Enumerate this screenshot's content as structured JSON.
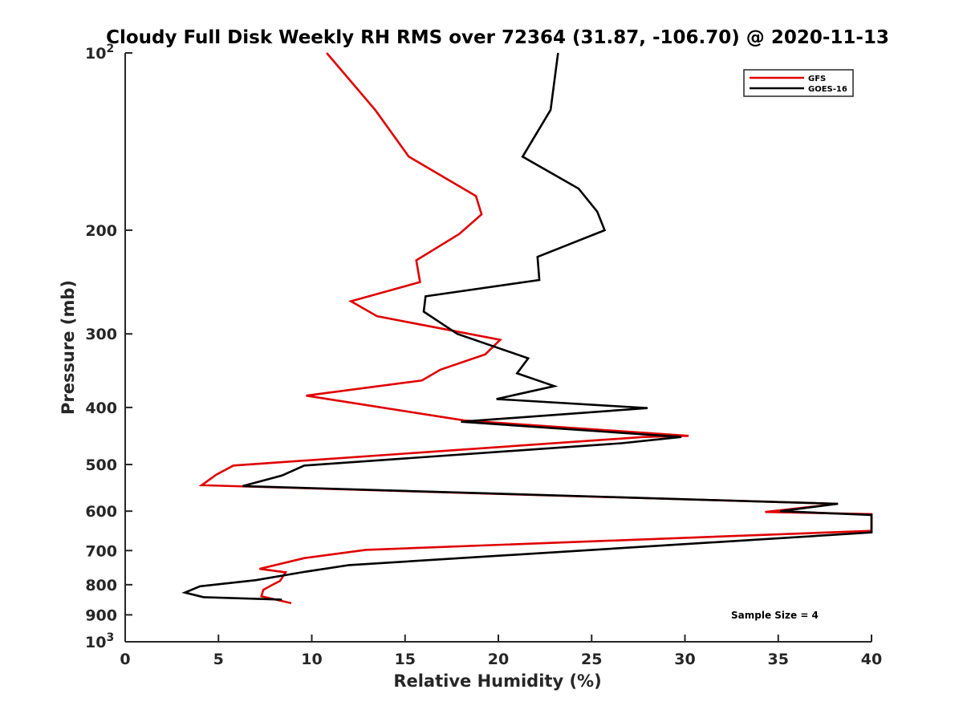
{
  "chart_data": {
    "type": "line",
    "title": "Cloudy Full Disk Weekly RH RMS over 72364 (31.87, -106.70) @ 2020-11-13",
    "xlabel": "Relative Humidity (%)",
    "ylabel": "Pressure (mb)",
    "xlim": [
      0,
      40
    ],
    "ylim": [
      100,
      1000
    ],
    "y_scale": "log",
    "y_reversed": true,
    "grid": false,
    "legend_position": "top-right",
    "x_ticks": [
      0,
      5,
      10,
      15,
      20,
      25,
      30,
      35,
      40
    ],
    "x_tick_labels": [
      "0",
      "5",
      "10",
      "15",
      "20",
      "25",
      "30",
      "35",
      "40"
    ],
    "y_ticks": [
      100,
      200,
      300,
      400,
      500,
      600,
      700,
      800,
      900,
      1000
    ],
    "y_tick_labels": [
      {
        "base": "10",
        "exp": "2"
      },
      {
        "base": "200",
        "exp": ""
      },
      {
        "base": "300",
        "exp": ""
      },
      {
        "base": "400",
        "exp": ""
      },
      {
        "base": "500",
        "exp": ""
      },
      {
        "base": "600",
        "exp": ""
      },
      {
        "base": "700",
        "exp": ""
      },
      {
        "base": "800",
        "exp": ""
      },
      {
        "base": "900",
        "exp": ""
      },
      {
        "base": "10",
        "exp": "3"
      }
    ],
    "annotation": "Sample Size = 4",
    "series": [
      {
        "name": "GFS",
        "color": "#e00000",
        "points": [
          [
            10.8,
            100
          ],
          [
            13.4,
            125
          ],
          [
            15.2,
            150
          ],
          [
            18.8,
            175
          ],
          [
            19.1,
            188
          ],
          [
            17.9,
            203
          ],
          [
            15.6,
            225
          ],
          [
            15.8,
            245
          ],
          [
            12.1,
            264
          ],
          [
            13.5,
            280
          ],
          [
            20.1,
            307
          ],
          [
            19.3,
            325
          ],
          [
            16.9,
            345
          ],
          [
            15.9,
            360
          ],
          [
            9.7,
            382
          ],
          [
            18.2,
            421
          ],
          [
            30.2,
            447
          ],
          [
            27.8,
            449
          ],
          [
            5.8,
            502
          ],
          [
            4.9,
            520
          ],
          [
            4.1,
            542
          ],
          [
            38.2,
            583
          ],
          [
            34.3,
            602
          ],
          [
            40.0,
            607
          ],
          [
            40.0,
            648
          ],
          [
            12.9,
            698
          ],
          [
            9.6,
            721
          ],
          [
            7.2,
            752
          ],
          [
            8.6,
            762
          ],
          [
            8.3,
            788
          ],
          [
            7.9,
            800
          ],
          [
            7.4,
            816
          ],
          [
            7.3,
            837
          ],
          [
            8.9,
            860
          ]
        ]
      },
      {
        "name": "GOES-16",
        "color": "#000000",
        "points": [
          [
            23.2,
            100
          ],
          [
            22.8,
            125
          ],
          [
            21.3,
            150
          ],
          [
            24.3,
            170
          ],
          [
            25.3,
            186
          ],
          [
            25.7,
            200
          ],
          [
            22.1,
            222
          ],
          [
            22.2,
            243
          ],
          [
            16.1,
            259
          ],
          [
            16.0,
            275
          ],
          [
            17.8,
            300
          ],
          [
            21.6,
            330
          ],
          [
            21.0,
            350
          ],
          [
            23.0,
            368
          ],
          [
            19.9,
            387
          ],
          [
            28.0,
            401
          ],
          [
            18.0,
            423
          ],
          [
            29.8,
            449
          ],
          [
            26.6,
            460
          ],
          [
            9.6,
            502
          ],
          [
            8.4,
            522
          ],
          [
            6.3,
            544
          ],
          [
            38.2,
            583
          ],
          [
            35.1,
            600
          ],
          [
            40.0,
            609
          ],
          [
            40.0,
            652
          ],
          [
            12.0,
            741
          ],
          [
            9.6,
            761
          ],
          [
            7.0,
            786
          ],
          [
            4.0,
            805
          ],
          [
            3.2,
            825
          ],
          [
            4.2,
            840
          ],
          [
            8.4,
            848
          ]
        ]
      }
    ]
  }
}
